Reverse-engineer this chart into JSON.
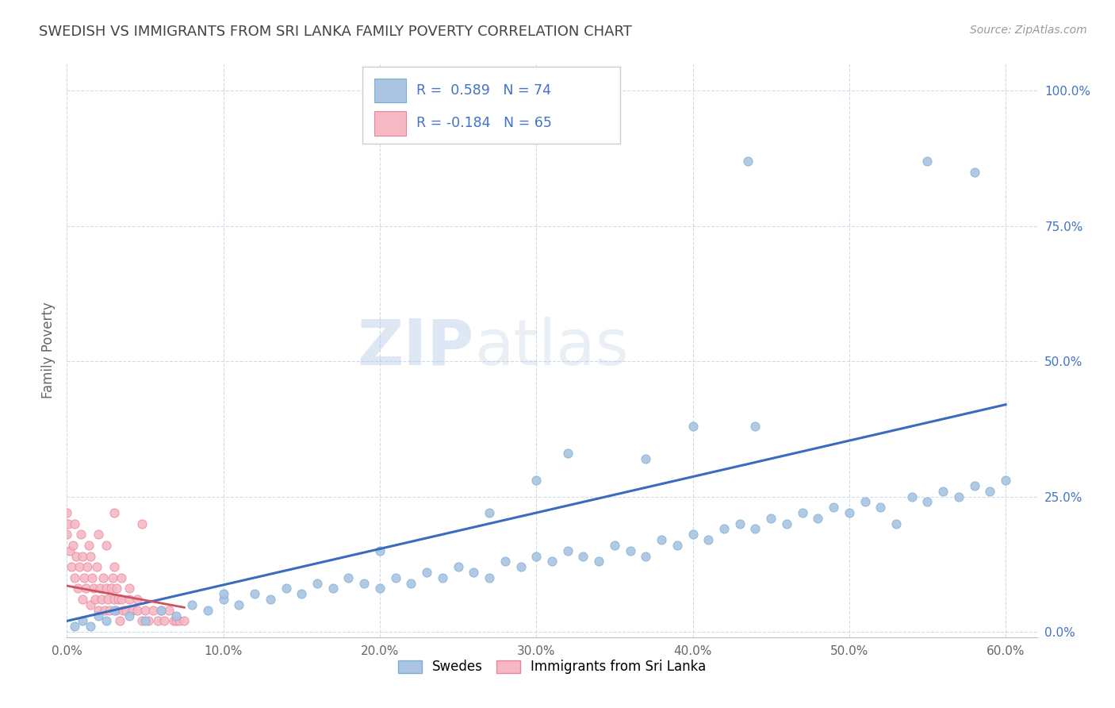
{
  "title": "SWEDISH VS IMMIGRANTS FROM SRI LANKA FAMILY POVERTY CORRELATION CHART",
  "source": "Source: ZipAtlas.com",
  "ylabel": "Family Poverty",
  "xlim": [
    0.0,
    0.62
  ],
  "ylim": [
    -0.01,
    1.05
  ],
  "xticks": [
    0.0,
    0.1,
    0.2,
    0.3,
    0.4,
    0.5,
    0.6
  ],
  "xtick_labels": [
    "0.0%",
    "10.0%",
    "20.0%",
    "30.0%",
    "40.0%",
    "50.0%",
    "60.0%"
  ],
  "ytick_labels": [
    "0.0%",
    "25.0%",
    "50.0%",
    "75.0%",
    "100.0%"
  ],
  "yticks": [
    0.0,
    0.25,
    0.5,
    0.75,
    1.0
  ],
  "swede_color": "#aac4e2",
  "swede_edge": "#7aafd4",
  "srilanka_color": "#f5b8c4",
  "srilanka_edge": "#e8859a",
  "trendline_swede": "#3a6bbf",
  "trendline_srilanka": "#d05060",
  "R_swede": 0.589,
  "N_swede": 74,
  "R_srilanka": -0.184,
  "N_srilanka": 65,
  "watermark_zip": "ZIP",
  "watermark_atlas": "atlas",
  "legend_swedes": "Swedes",
  "legend_srilanka": "Immigrants from Sri Lanka",
  "sw_trend_x0": 0.0,
  "sw_trend_x1": 0.6,
  "sw_trend_y0": 0.02,
  "sw_trend_y1": 0.42,
  "sl_trend_x0": 0.0,
  "sl_trend_x1": 0.075,
  "sl_trend_y0": 0.085,
  "sl_trend_y1": 0.045,
  "swedes_x": [
    0.005,
    0.01,
    0.015,
    0.02,
    0.025,
    0.03,
    0.04,
    0.05,
    0.06,
    0.07,
    0.08,
    0.09,
    0.1,
    0.11,
    0.12,
    0.13,
    0.14,
    0.15,
    0.16,
    0.17,
    0.18,
    0.19,
    0.2,
    0.21,
    0.22,
    0.23,
    0.24,
    0.25,
    0.26,
    0.27,
    0.28,
    0.29,
    0.3,
    0.31,
    0.32,
    0.33,
    0.34,
    0.35,
    0.36,
    0.37,
    0.38,
    0.39,
    0.4,
    0.41,
    0.42,
    0.43,
    0.44,
    0.45,
    0.46,
    0.47,
    0.48,
    0.49,
    0.5,
    0.51,
    0.52,
    0.53,
    0.54,
    0.55,
    0.56,
    0.57,
    0.58,
    0.59,
    0.6,
    0.32,
    0.27,
    0.4,
    0.435,
    0.55,
    0.58,
    0.44,
    0.37,
    0.3,
    0.2,
    0.1
  ],
  "swedes_y": [
    0.01,
    0.02,
    0.01,
    0.03,
    0.02,
    0.04,
    0.03,
    0.02,
    0.04,
    0.03,
    0.05,
    0.04,
    0.06,
    0.05,
    0.07,
    0.06,
    0.08,
    0.07,
    0.09,
    0.08,
    0.1,
    0.09,
    0.08,
    0.1,
    0.09,
    0.11,
    0.1,
    0.12,
    0.11,
    0.1,
    0.13,
    0.12,
    0.14,
    0.13,
    0.15,
    0.14,
    0.13,
    0.16,
    0.15,
    0.14,
    0.17,
    0.16,
    0.18,
    0.17,
    0.19,
    0.2,
    0.19,
    0.21,
    0.2,
    0.22,
    0.21,
    0.23,
    0.22,
    0.24,
    0.23,
    0.2,
    0.25,
    0.24,
    0.26,
    0.25,
    0.27,
    0.26,
    0.28,
    0.33,
    0.22,
    0.38,
    0.87,
    0.87,
    0.85,
    0.38,
    0.32,
    0.28,
    0.15,
    0.07
  ],
  "srilanka_x": [
    0.0,
    0.0,
    0.001,
    0.002,
    0.003,
    0.004,
    0.005,
    0.005,
    0.006,
    0.007,
    0.008,
    0.009,
    0.01,
    0.01,
    0.011,
    0.012,
    0.013,
    0.014,
    0.015,
    0.015,
    0.016,
    0.017,
    0.018,
    0.019,
    0.02,
    0.02,
    0.021,
    0.022,
    0.023,
    0.024,
    0.025,
    0.025,
    0.026,
    0.027,
    0.028,
    0.029,
    0.03,
    0.03,
    0.031,
    0.032,
    0.033,
    0.034,
    0.035,
    0.035,
    0.036,
    0.038,
    0.04,
    0.04,
    0.042,
    0.045,
    0.045,
    0.048,
    0.05,
    0.052,
    0.055,
    0.058,
    0.06,
    0.062,
    0.065,
    0.068,
    0.07,
    0.072,
    0.075,
    0.048,
    0.03
  ],
  "srilanka_y": [
    0.22,
    0.18,
    0.2,
    0.15,
    0.12,
    0.16,
    0.1,
    0.2,
    0.14,
    0.08,
    0.12,
    0.18,
    0.06,
    0.14,
    0.1,
    0.08,
    0.12,
    0.16,
    0.05,
    0.14,
    0.1,
    0.08,
    0.06,
    0.12,
    0.04,
    0.18,
    0.08,
    0.06,
    0.1,
    0.04,
    0.08,
    0.16,
    0.06,
    0.04,
    0.08,
    0.1,
    0.06,
    0.12,
    0.04,
    0.08,
    0.06,
    0.02,
    0.06,
    0.1,
    0.04,
    0.04,
    0.06,
    0.08,
    0.04,
    0.04,
    0.06,
    0.02,
    0.04,
    0.02,
    0.04,
    0.02,
    0.04,
    0.02,
    0.04,
    0.02,
    0.02,
    0.02,
    0.02,
    0.2,
    0.22
  ]
}
